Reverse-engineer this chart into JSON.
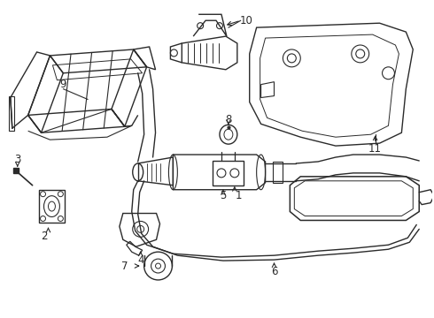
{
  "background_color": "#ffffff",
  "line_color": "#2a2a2a",
  "lw": 1.0,
  "label_fs": 8.5,
  "fig_w": 4.9,
  "fig_h": 3.6,
  "dpi": 100
}
